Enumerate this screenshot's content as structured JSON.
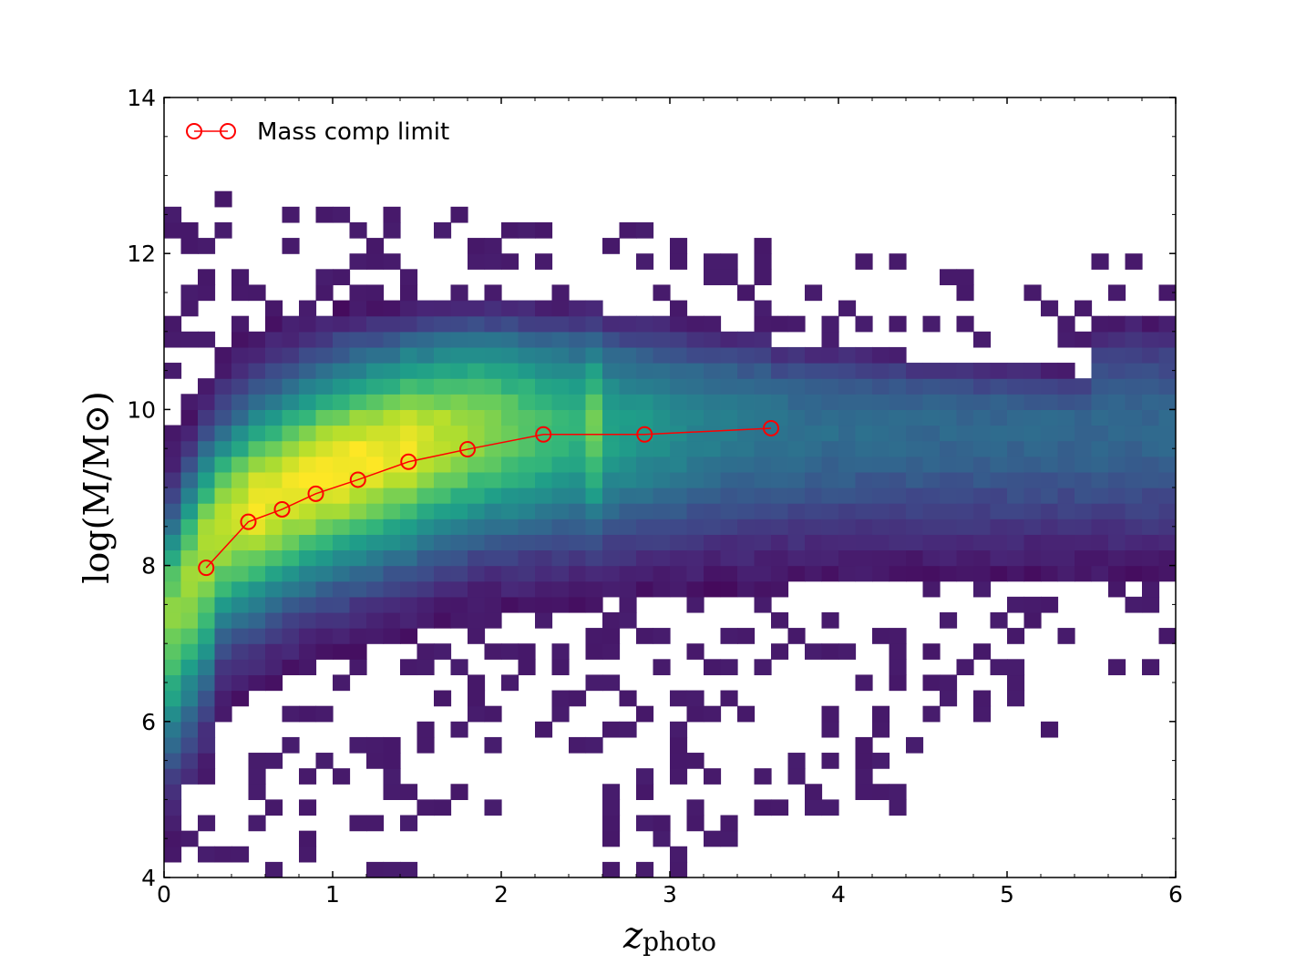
{
  "chart_data": {
    "type": "heatmap",
    "xlabel_main": "z",
    "xlabel_sub": "photo",
    "ylabel": "log(M/M⊙)",
    "xlim": [
      0,
      6
    ],
    "ylim": [
      4,
      14
    ],
    "x_ticks": [
      "0",
      "1",
      "2",
      "3",
      "4",
      "5",
      "6"
    ],
    "y_ticks": [
      "4",
      "6",
      "8",
      "10",
      "12",
      "14"
    ],
    "grid": false,
    "colormap": "viridis",
    "legend_position": "top-left",
    "legend": [
      {
        "label": "Mass comp limit",
        "color": "#ff0000",
        "marker": "open-circle"
      }
    ],
    "density": {
      "description": "2D histogram of photometric redshift vs stellar mass, viridis colormap (dark purple = few objects, yellow = many)",
      "peak": {
        "x": 1.1,
        "y": 9.0
      },
      "occupied_region": {
        "x": [
          0,
          6
        ],
        "y": [
          4.2,
          12.8
        ]
      }
    },
    "series": [
      {
        "name": "Mass comp limit",
        "color": "#ff0000",
        "x": [
          0.25,
          0.5,
          0.7,
          0.9,
          1.15,
          1.45,
          1.8,
          2.25,
          2.85,
          3.6
        ],
        "y": [
          7.97,
          8.56,
          8.72,
          8.92,
          9.1,
          9.33,
          9.49,
          9.68,
          9.68,
          9.76
        ]
      }
    ]
  }
}
